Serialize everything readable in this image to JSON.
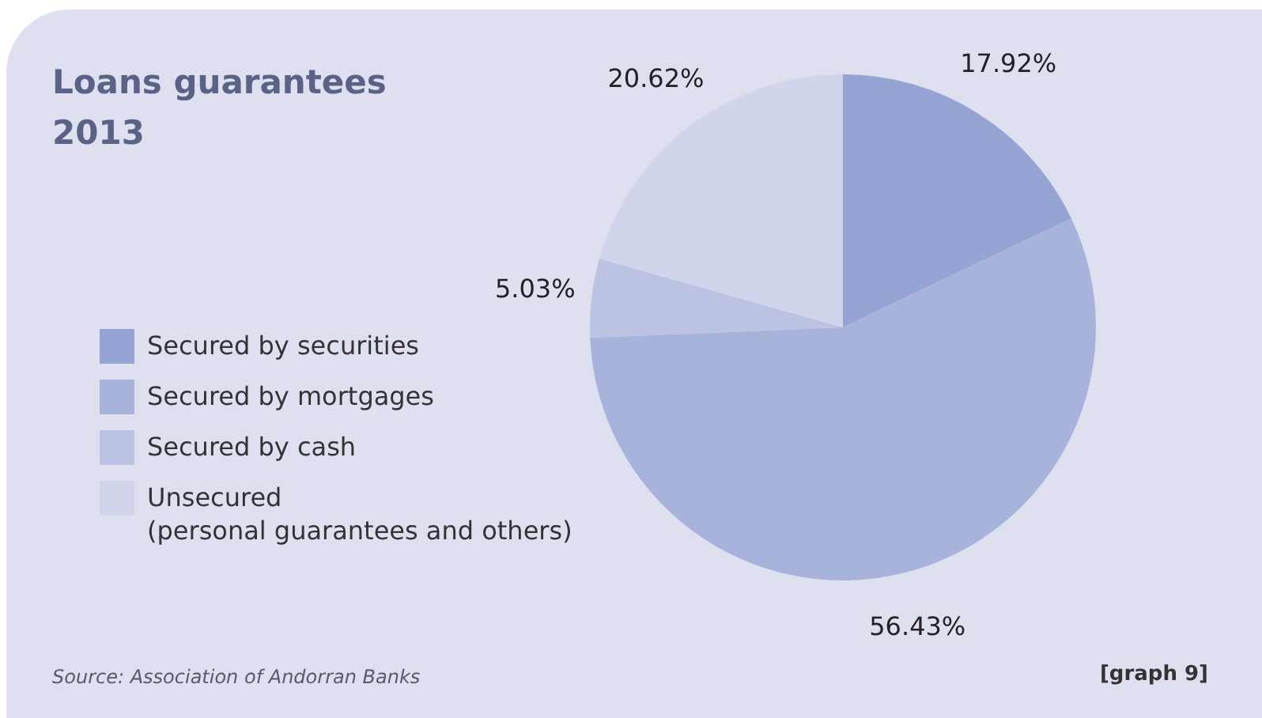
{
  "chart_data": {
    "type": "pie",
    "title": "Loans guarantees\n2013",
    "categories": [
      "Secured by securities",
      "Secured by mortgages",
      "Secured by cash",
      "Unsecured\n(personal guarantees and others)"
    ],
    "values": [
      17.92,
      56.43,
      5.03,
      20.62
    ],
    "value_labels": [
      "17.92%",
      "56.43%",
      "5.03%",
      "20.62%"
    ],
    "colors": [
      "#96a4d3",
      "#a8b3db",
      "#bbc2e2",
      "#d0d5eb"
    ],
    "legend": "left",
    "annotations": [
      "Source: Association of Andorran Banks",
      "[graph 9]"
    ]
  }
}
